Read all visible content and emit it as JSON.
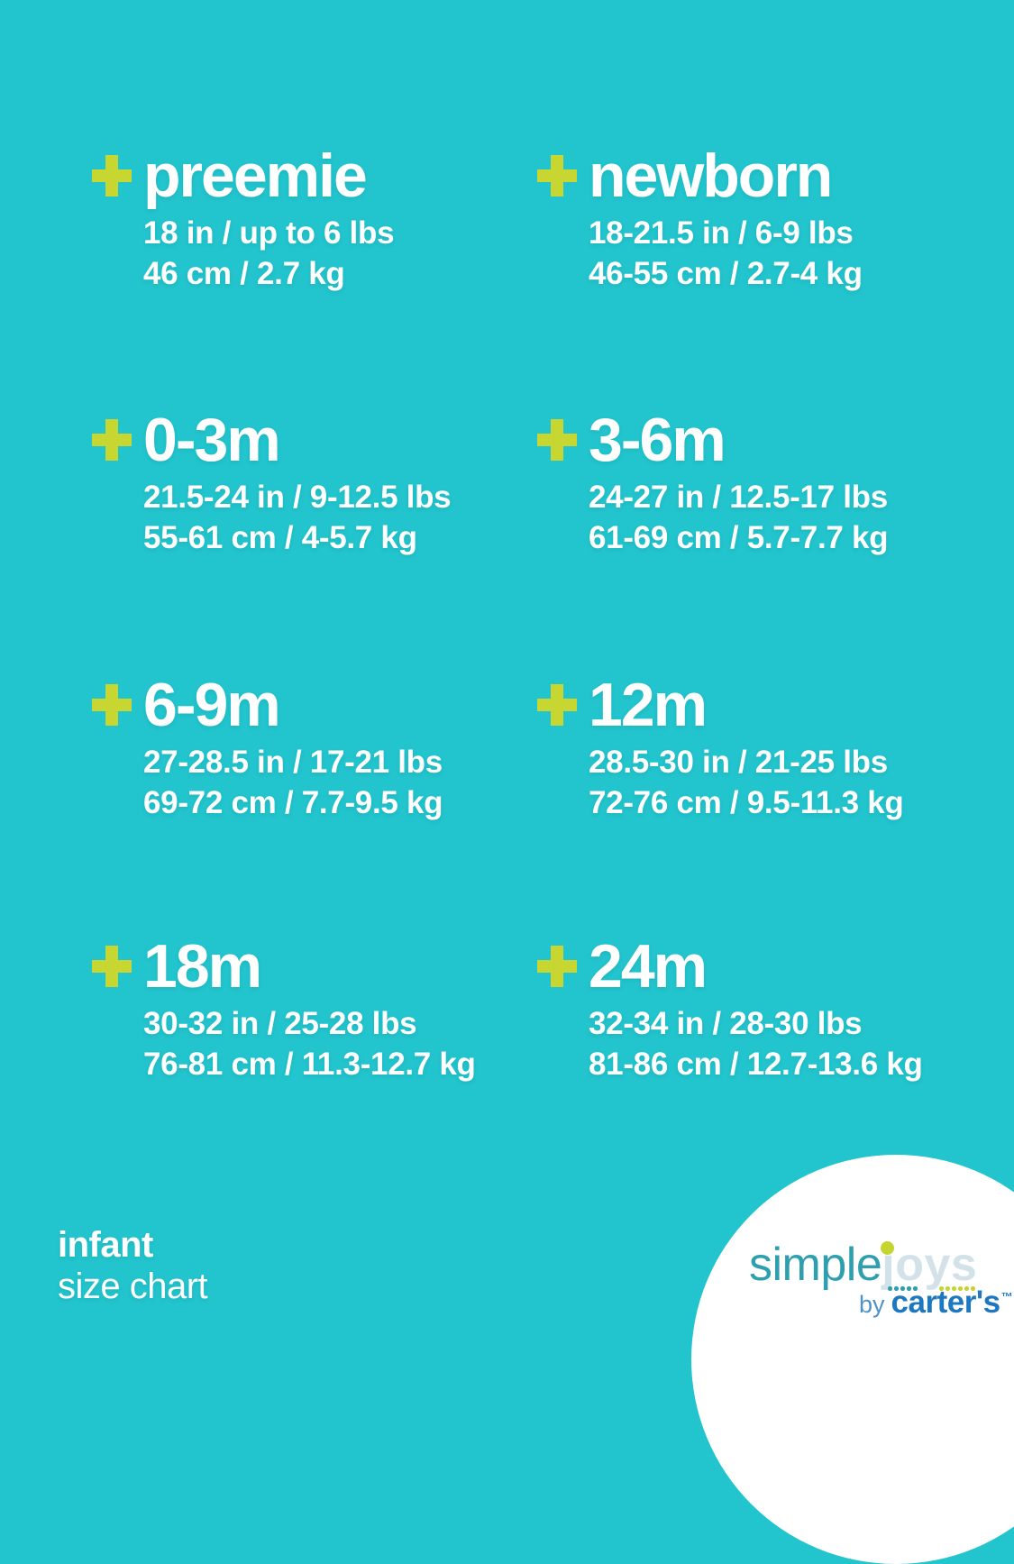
{
  "page": {
    "colors": {
      "bg": "#22c4cd",
      "accent": "#c7d631",
      "text": "#ffffff",
      "logo-simple": "#2e9fae",
      "logo-joys": "#d3e2e9",
      "logo-dot": "#c5d52f",
      "logo-by": "#4d93c8",
      "logo-brand": "#1e78bf"
    },
    "icons": {
      "size_bullet": "plus-icon"
    }
  },
  "sizes": [
    {
      "name": "preemie",
      "imperial": "18 in / up to 6 lbs",
      "metric": "46 cm / 2.7 kg"
    },
    {
      "name": "newborn",
      "imperial": "18-21.5 in / 6-9 lbs",
      "metric": "46-55 cm / 2.7-4 kg"
    },
    {
      "name": "0-3m",
      "imperial": "21.5-24 in / 9-12.5 lbs",
      "metric": "55-61 cm / 4-5.7 kg"
    },
    {
      "name": "3-6m",
      "imperial": "24-27 in / 12.5-17 lbs",
      "metric": "61-69 cm / 5.7-7.7 kg"
    },
    {
      "name": "6-9m",
      "imperial": "27-28.5 in / 17-21 lbs",
      "metric": "69-72 cm / 7.7-9.5 kg"
    },
    {
      "name": "12m",
      "imperial": "28.5-30 in / 21-25 lbs",
      "metric": "72-76 cm / 9.5-11.3 kg"
    },
    {
      "name": "18m",
      "imperial": "30-32 in / 25-28 lbs",
      "metric": "76-81 cm / 11.3-12.7 kg"
    },
    {
      "name": "24m",
      "imperial": "32-34 in / 28-30 lbs",
      "metric": "81-86 cm / 12.7-13.6 kg"
    }
  ],
  "footer": {
    "title": "infant",
    "subtitle": "size chart"
  },
  "logo": {
    "simple": "simple",
    "joys": "joys",
    "by": "by",
    "brand": "carter's",
    "tm": "™"
  }
}
